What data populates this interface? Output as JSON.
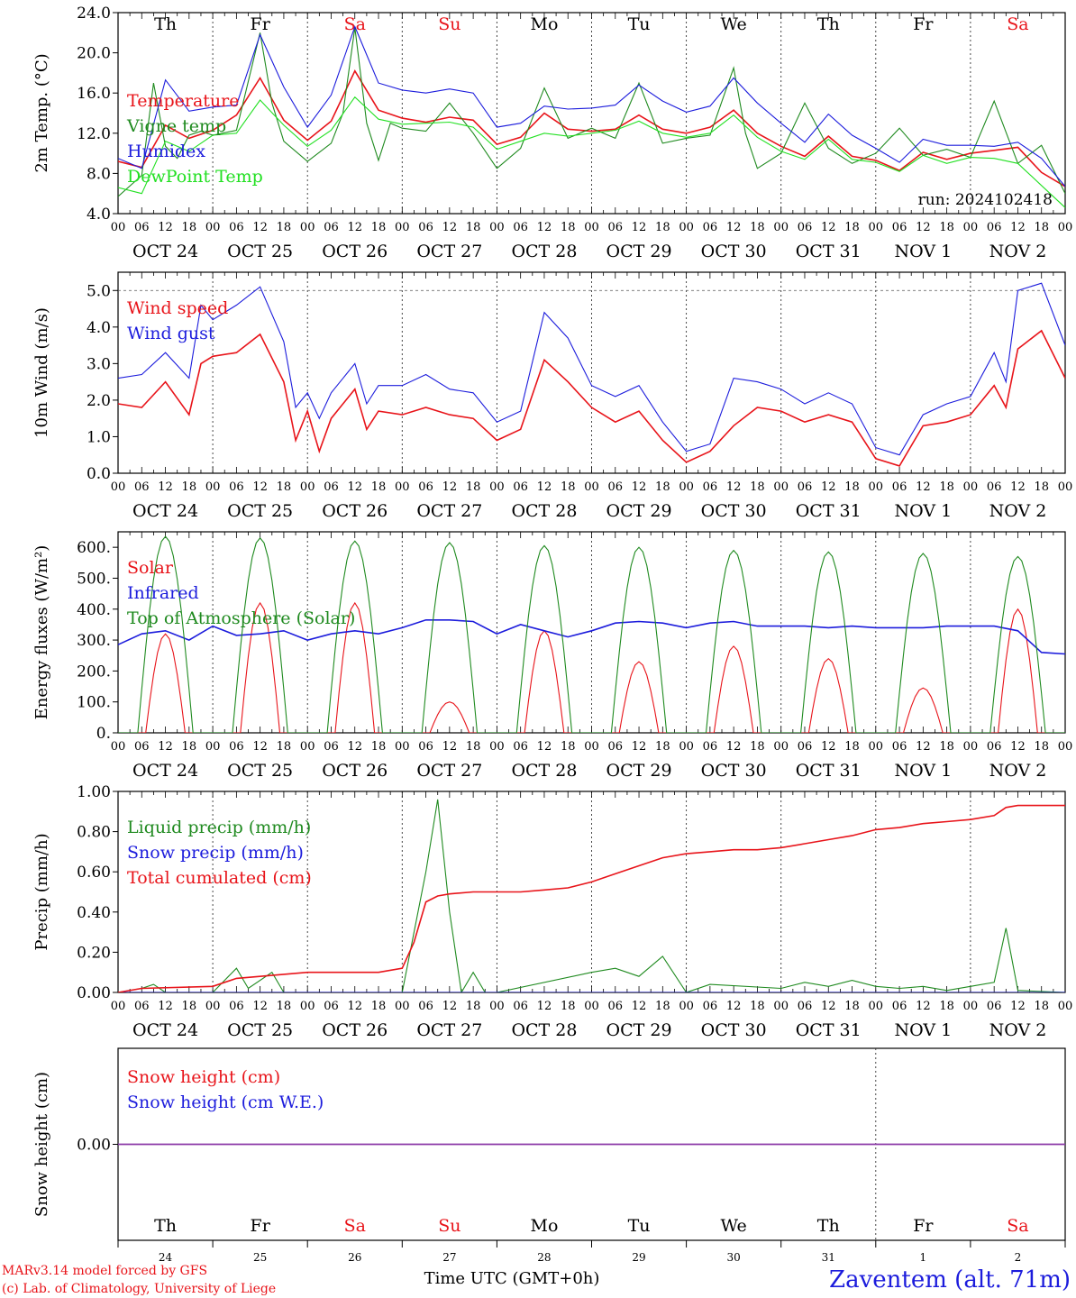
{
  "run_label": "run: 2024102418",
  "days": [
    "Th",
    "Fr",
    "Sa",
    "Su",
    "Mo",
    "Tu",
    "We",
    "Th",
    "Fr",
    "Sa"
  ],
  "weekend_flags": [
    false,
    false,
    true,
    true,
    false,
    false,
    false,
    false,
    false,
    true
  ],
  "date_labels": [
    "OCT 24",
    "OCT 25",
    "OCT 26",
    "OCT 27",
    "OCT 28",
    "OCT 29",
    "OCT 30",
    "OCT 31",
    "NOV  1",
    "NOV  2"
  ],
  "day_numbers": [
    "24",
    "25",
    "26",
    "27",
    "28",
    "29",
    "30",
    "31",
    "1",
    "2"
  ],
  "hour_labels": [
    "00",
    "06",
    "12",
    "18"
  ],
  "end_hour_label": "00",
  "footer": {
    "model_line": "MARv3.14 model forced by GFS",
    "copyright_line": "(c) Lab. of Climatology, University of Liege",
    "time_label": "Time UTC (GMT+0h)",
    "station": "Zaventem (alt. 71m)"
  },
  "colors": {
    "red": "#e8141a",
    "green": "#1f8a1f",
    "blue": "#1c1cdc",
    "lightgreen": "#22e022",
    "purple": "#8b3aa8"
  },
  "chart_data": [
    {
      "type": "line",
      "ylabel": "2m Temp. (°C)",
      "ylim": [
        4,
        24
      ],
      "yticks": [
        "4.0",
        "8.0",
        "12.0",
        "16.0",
        "20.0",
        "24.0"
      ],
      "grid": "vertical dotted at day boundaries",
      "legend_placement": "left",
      "series": [
        {
          "name": "Temperature",
          "color": "#e8141a",
          "x": [
            0,
            6,
            12,
            18,
            24,
            30,
            36,
            42,
            48,
            54,
            60,
            66,
            72,
            78,
            84,
            90,
            96,
            102,
            108,
            114,
            120,
            126,
            132,
            138,
            144,
            150,
            156,
            162,
            168,
            174,
            180,
            186,
            192,
            198,
            204,
            210,
            216,
            222,
            228,
            234,
            240
          ],
          "y": [
            9.2,
            8.6,
            12.8,
            11.5,
            12.3,
            13.8,
            17.5,
            13.3,
            11.3,
            13.2,
            18.2,
            14.3,
            13.5,
            13.1,
            13.6,
            13.3,
            10.9,
            11.6,
            14.0,
            12.4,
            12.2,
            12.4,
            13.8,
            12.4,
            12.0,
            12.6,
            14.3,
            12.0,
            10.7,
            9.7,
            11.7,
            9.7,
            9.3,
            8.3,
            10.1,
            9.4,
            10.0,
            10.3,
            10.6,
            8.1,
            6.7
          ]
        },
        {
          "name": "Vigne temp",
          "color": "#1f8a1f",
          "x": [
            0,
            6,
            9,
            12,
            15,
            18,
            21,
            24,
            30,
            36,
            39,
            42,
            48,
            54,
            57,
            60,
            63,
            66,
            69,
            72,
            78,
            84,
            90,
            96,
            102,
            108,
            114,
            120,
            126,
            132,
            138,
            144,
            150,
            156,
            159,
            162,
            168,
            174,
            180,
            186,
            192,
            198,
            204,
            210,
            216,
            222,
            228,
            234,
            240
          ],
          "y": [
            5.7,
            7.8,
            17.0,
            10.7,
            9.5,
            11.8,
            12.2,
            11.8,
            12.3,
            22.0,
            15.0,
            11.2,
            9.2,
            11.0,
            14.0,
            22.5,
            13.0,
            9.3,
            13.0,
            12.5,
            12.2,
            15.0,
            12.0,
            8.5,
            10.5,
            16.5,
            11.5,
            12.5,
            11.5,
            17.0,
            11.0,
            11.5,
            11.8,
            18.5,
            12.0,
            8.5,
            10.0,
            15.0,
            10.5,
            9.0,
            10.0,
            12.5,
            9.8,
            10.4,
            9.6,
            15.2,
            9.0,
            10.8,
            6.0
          ]
        },
        {
          "name": "Humidex",
          "color": "#1c1cdc",
          "x": [
            0,
            6,
            12,
            18,
            24,
            30,
            36,
            42,
            48,
            54,
            60,
            66,
            72,
            78,
            84,
            90,
            96,
            102,
            108,
            114,
            120,
            126,
            132,
            138,
            144,
            150,
            156,
            162,
            168,
            174,
            180,
            186,
            192,
            198,
            204,
            210,
            216,
            222,
            228,
            234,
            240
          ],
          "y": [
            9.5,
            8.5,
            17.3,
            14.2,
            14.6,
            14.8,
            21.8,
            16.6,
            12.6,
            15.8,
            22.6,
            17.0,
            16.3,
            16.0,
            16.4,
            16.0,
            12.6,
            13.0,
            14.7,
            14.4,
            14.5,
            14.8,
            16.8,
            15.2,
            14.1,
            14.7,
            17.5,
            15.0,
            13.0,
            11.1,
            13.9,
            11.8,
            10.5,
            9.1,
            11.4,
            10.8,
            10.8,
            10.7,
            11.1,
            9.5,
            6.7
          ]
        },
        {
          "name": "DewPoint Temp",
          "color": "#22e022",
          "x": [
            0,
            6,
            12,
            18,
            24,
            30,
            36,
            42,
            48,
            54,
            60,
            66,
            72,
            78,
            84,
            90,
            96,
            102,
            108,
            114,
            120,
            126,
            132,
            138,
            144,
            150,
            156,
            162,
            168,
            174,
            180,
            186,
            192,
            198,
            204,
            210,
            216,
            222,
            228,
            234,
            240
          ],
          "y": [
            6.6,
            6.0,
            11.2,
            10.2,
            11.8,
            12.0,
            15.3,
            12.8,
            10.7,
            12.3,
            15.6,
            13.4,
            12.9,
            13.0,
            13.1,
            12.6,
            10.4,
            11.2,
            12.0,
            11.7,
            12.0,
            12.3,
            13.2,
            12.0,
            11.6,
            12.0,
            13.8,
            11.6,
            10.2,
            9.4,
            11.4,
            9.4,
            9.1,
            8.2,
            9.8,
            9.0,
            9.6,
            9.5,
            9.0,
            6.8,
            4.6
          ]
        }
      ]
    },
    {
      "type": "line",
      "ylabel": "10m Wind (m/s)",
      "ylim": [
        0,
        5.5
      ],
      "yticks": [
        "0.0",
        "1.0",
        "2.0",
        "3.0",
        "4.0",
        "5.0"
      ],
      "legend_placement": "left",
      "series": [
        {
          "name": "Wind speed",
          "color": "#e8141a",
          "x": [
            0,
            6,
            12,
            18,
            21,
            24,
            30,
            36,
            42,
            45,
            48,
            51,
            54,
            60,
            63,
            66,
            72,
            78,
            84,
            90,
            96,
            102,
            108,
            114,
            120,
            126,
            132,
            138,
            144,
            150,
            156,
            162,
            168,
            174,
            180,
            186,
            192,
            198,
            204,
            210,
            216,
            222,
            225,
            228,
            234,
            240
          ],
          "y": [
            1.9,
            1.8,
            2.5,
            1.6,
            3.0,
            3.2,
            3.3,
            3.8,
            2.5,
            0.9,
            1.7,
            0.6,
            1.5,
            2.3,
            1.2,
            1.7,
            1.6,
            1.8,
            1.6,
            1.5,
            0.9,
            1.2,
            3.1,
            2.5,
            1.8,
            1.4,
            1.7,
            0.9,
            0.3,
            0.6,
            1.3,
            1.8,
            1.7,
            1.4,
            1.6,
            1.4,
            0.4,
            0.2,
            1.3,
            1.4,
            1.6,
            2.4,
            1.8,
            3.4,
            3.9,
            2.6
          ]
        },
        {
          "name": "Wind gust",
          "color": "#1c1cdc",
          "x": [
            0,
            6,
            12,
            18,
            21,
            24,
            30,
            36,
            42,
            45,
            48,
            51,
            54,
            60,
            63,
            66,
            72,
            78,
            84,
            90,
            96,
            102,
            108,
            114,
            120,
            126,
            132,
            138,
            144,
            150,
            156,
            162,
            168,
            174,
            180,
            186,
            192,
            198,
            204,
            210,
            216,
            222,
            225,
            228,
            234,
            240
          ],
          "y": [
            2.6,
            2.7,
            3.3,
            2.6,
            4.6,
            4.2,
            4.6,
            5.1,
            3.6,
            1.8,
            2.2,
            1.5,
            2.2,
            3.0,
            1.9,
            2.4,
            2.4,
            2.7,
            2.3,
            2.2,
            1.4,
            1.7,
            4.4,
            3.7,
            2.4,
            2.1,
            2.4,
            1.4,
            0.6,
            0.8,
            2.6,
            2.5,
            2.3,
            1.9,
            2.2,
            1.9,
            0.7,
            0.5,
            1.6,
            1.9,
            2.1,
            3.3,
            2.5,
            5.0,
            5.2,
            3.5
          ]
        }
      ]
    },
    {
      "type": "line",
      "ylabel": "Energy fluxes (W/m²)",
      "ylim": [
        0,
        650
      ],
      "yticks": [
        "0.",
        "100.",
        "200.",
        "300.",
        "400.",
        "500.",
        "600."
      ],
      "legend_placement": "left",
      "series": [
        {
          "name": "Solar",
          "color": "#e8141a",
          "peaks": [
            320,
            420,
            420,
            100,
            330,
            230,
            280,
            240,
            145,
            400
          ]
        },
        {
          "name": "Infrared",
          "color": "#1c1cdc",
          "x": [
            0,
            6,
            12,
            18,
            24,
            30,
            36,
            42,
            48,
            54,
            60,
            66,
            72,
            78,
            84,
            90,
            96,
            102,
            108,
            114,
            120,
            126,
            132,
            138,
            144,
            150,
            156,
            162,
            168,
            174,
            180,
            186,
            192,
            198,
            204,
            210,
            216,
            222,
            228,
            234,
            240
          ],
          "y": [
            285,
            320,
            330,
            300,
            345,
            315,
            320,
            330,
            300,
            320,
            330,
            320,
            340,
            365,
            365,
            360,
            320,
            350,
            330,
            310,
            330,
            355,
            360,
            355,
            340,
            355,
            360,
            345,
            345,
            345,
            340,
            345,
            340,
            340,
            340,
            345,
            345,
            345,
            330,
            260,
            255
          ]
        },
        {
          "name": "Top of Atmosphere (Solar)",
          "color": "#1f8a1f",
          "peaks": [
            635,
            630,
            620,
            615,
            605,
            600,
            590,
            585,
            580,
            570
          ]
        }
      ]
    },
    {
      "type": "line",
      "ylabel": "Precip (mm/h)",
      "ylim": [
        0,
        1.0
      ],
      "yticks": [
        "0.00",
        "0.20",
        "0.40",
        "0.60",
        "0.80",
        "1.00"
      ],
      "legend_placement": "left",
      "series": [
        {
          "name": "Liquid precip (mm/h)",
          "color": "#1f8a1f",
          "x": [
            0,
            6,
            9,
            12,
            24,
            27,
            30,
            33,
            39,
            42,
            48,
            72,
            78,
            81,
            84,
            87,
            90,
            93,
            96,
            120,
            126,
            132,
            138,
            144,
            150,
            168,
            174,
            180,
            186,
            192,
            198,
            204,
            210,
            216,
            222,
            225,
            228,
            240
          ],
          "y": [
            0,
            0.02,
            0.04,
            0,
            0,
            0.06,
            0.12,
            0.02,
            0.1,
            0,
            0,
            0,
            0.6,
            0.96,
            0.4,
            0,
            0.1,
            0,
            0,
            0.1,
            0.12,
            0.08,
            0.18,
            0,
            0.04,
            0.02,
            0.05,
            0.03,
            0.06,
            0.03,
            0.02,
            0.03,
            0.01,
            0.03,
            0.05,
            0.32,
            0.01,
            0
          ]
        },
        {
          "name": "Snow precip (mm/h)",
          "color": "#1c1cdc",
          "x": [
            0,
            240
          ],
          "y": [
            0,
            0
          ]
        },
        {
          "name": "Total cumulated (cm)",
          "color": "#e8141a",
          "x": [
            0,
            6,
            24,
            30,
            36,
            48,
            66,
            72,
            75,
            78,
            81,
            84,
            90,
            96,
            102,
            108,
            114,
            120,
            126,
            132,
            138,
            144,
            150,
            156,
            162,
            168,
            174,
            180,
            186,
            192,
            198,
            204,
            210,
            216,
            222,
            225,
            228,
            240
          ],
          "y": [
            0,
            0.02,
            0.03,
            0.07,
            0.08,
            0.1,
            0.1,
            0.12,
            0.25,
            0.45,
            0.48,
            0.49,
            0.5,
            0.5,
            0.5,
            0.51,
            0.52,
            0.55,
            0.59,
            0.63,
            0.67,
            0.69,
            0.7,
            0.71,
            0.71,
            0.72,
            0.74,
            0.76,
            0.78,
            0.81,
            0.82,
            0.84,
            0.85,
            0.86,
            0.88,
            0.92,
            0.93,
            0.93
          ]
        }
      ]
    },
    {
      "type": "line",
      "ylabel": "Snow height (cm)",
      "ylim": [
        -1,
        1
      ],
      "yticks": [
        "0.00"
      ],
      "legend_placement": "left",
      "series": [
        {
          "name": "Snow height (cm)",
          "color": "#e8141a",
          "x": [
            0,
            240
          ],
          "y": [
            0,
            0
          ]
        },
        {
          "name": "Snow height (cm W.E.)",
          "color": "#1c1cdc",
          "x": [
            0,
            240
          ],
          "y": [
            0,
            0
          ]
        }
      ]
    }
  ]
}
